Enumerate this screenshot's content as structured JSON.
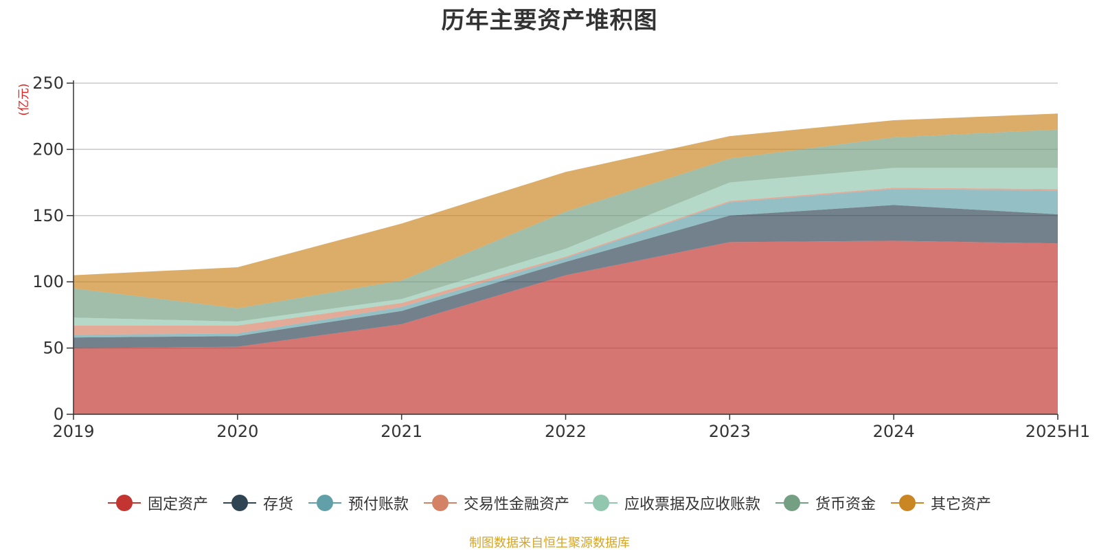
{
  "chart_data": {
    "type": "area",
    "stacked": true,
    "title": "历年主要资产堆积图",
    "unit": "(亿元)",
    "categories": [
      "2019",
      "2020",
      "2021",
      "2022",
      "2023",
      "2024",
      "2025H1"
    ],
    "ylim": [
      0,
      250
    ],
    "yticks": [
      0,
      50,
      100,
      150,
      200,
      250
    ],
    "grid": true,
    "legend_position": "bottom",
    "series": [
      {
        "name": "固定资产",
        "color": "#c23531",
        "values": [
          50,
          51,
          68,
          105,
          130,
          131,
          129
        ]
      },
      {
        "name": "存货",
        "color": "#2f4554",
        "values": [
          8,
          8,
          10,
          10,
          20,
          27,
          22
        ]
      },
      {
        "name": "预付账款",
        "color": "#61a0a8",
        "values": [
          2,
          2,
          3,
          3,
          10,
          12,
          18
        ]
      },
      {
        "name": "交易性金融资产",
        "color": "#d48265",
        "values": [
          7,
          6,
          3,
          1,
          1,
          1,
          1
        ]
      },
      {
        "name": "应收票据及应收账款",
        "color": "#91c7ae",
        "values": [
          6,
          3,
          3,
          6,
          14,
          15,
          16
        ]
      },
      {
        "name": "货币资金",
        "color": "#749f83",
        "values": [
          22,
          10,
          14,
          28,
          18,
          23,
          29
        ]
      },
      {
        "name": "其它资产",
        "color": "#ca8622",
        "values": [
          10,
          31,
          43,
          30,
          17,
          13,
          12
        ]
      }
    ]
  },
  "source_note": "制图数据来自恒生聚源数据库"
}
